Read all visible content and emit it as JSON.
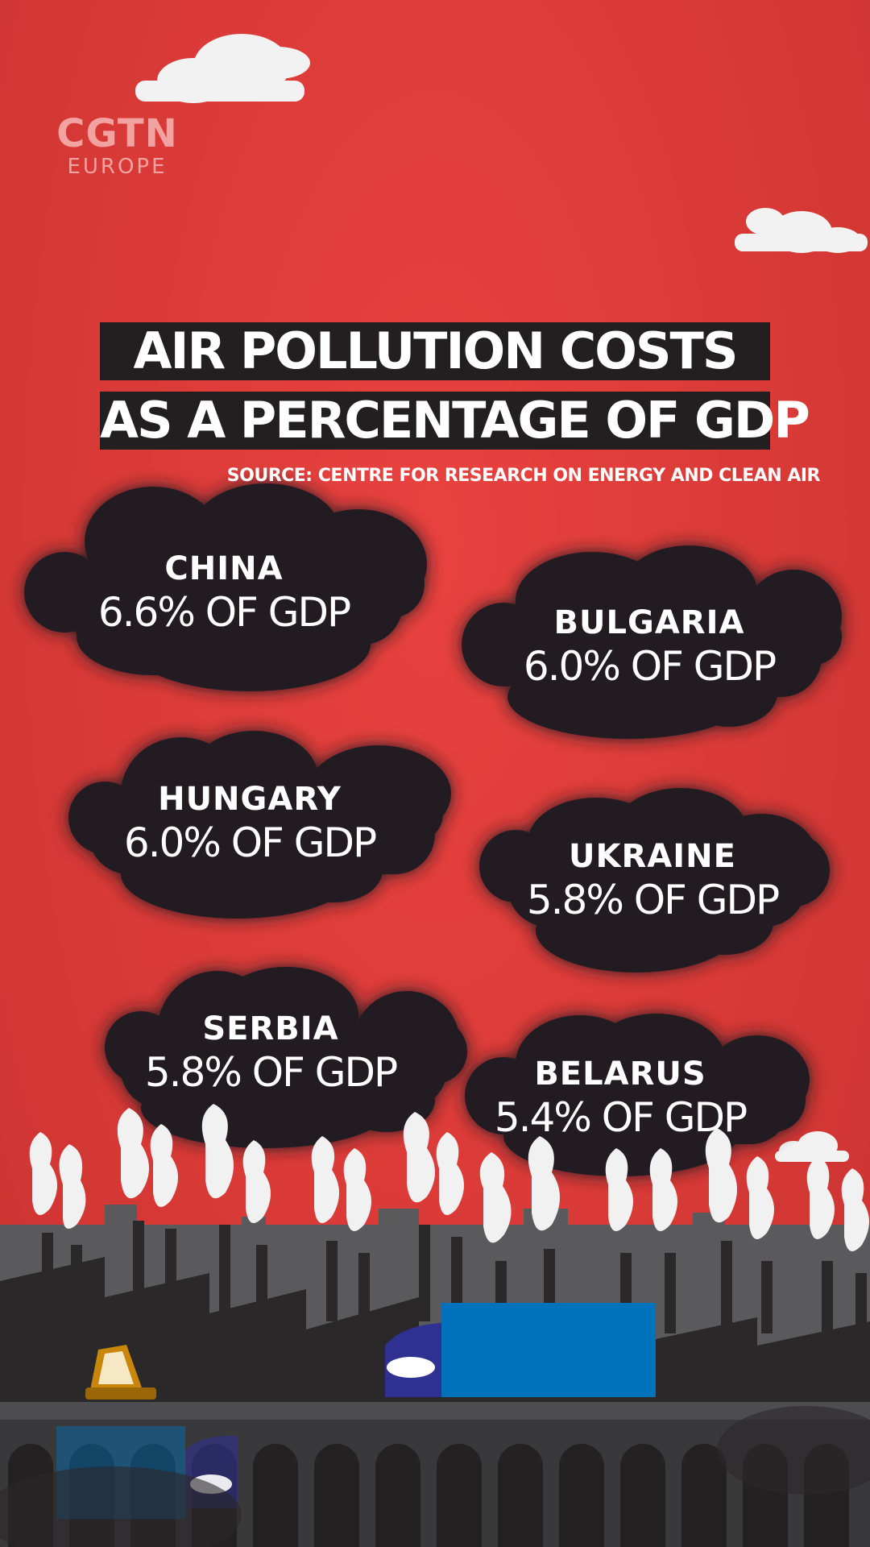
{
  "logo": {
    "line1": "CGTN",
    "line2": "EUROPE"
  },
  "title": {
    "line1": "AIR POLLUTION COSTS",
    "line2": "AS A PERCENTAGE OF GDP"
  },
  "source": "SOURCE: CENTRE FOR RESEARCH ON ENERGY AND CLEAN AIR",
  "countries": [
    {
      "name": "CHINA",
      "value": "6.6% OF GDP"
    },
    {
      "name": "BULGARIA",
      "value": "6.0% OF GDP"
    },
    {
      "name": "HUNGARY",
      "value": "6.0% OF GDP"
    },
    {
      "name": "UKRAINE",
      "value": "5.8% OF GDP"
    },
    {
      "name": "SERBIA",
      "value": "5.8% OF GDP"
    },
    {
      "name": "BELARUS",
      "value": "5.4% OF GDP"
    }
  ],
  "colors": {
    "background": "#d93a37",
    "cloud": "#231f20",
    "truck": "#0072bc",
    "cab": "#2e3192",
    "car": "#c8860a",
    "bridge": "#4d4d4f"
  }
}
